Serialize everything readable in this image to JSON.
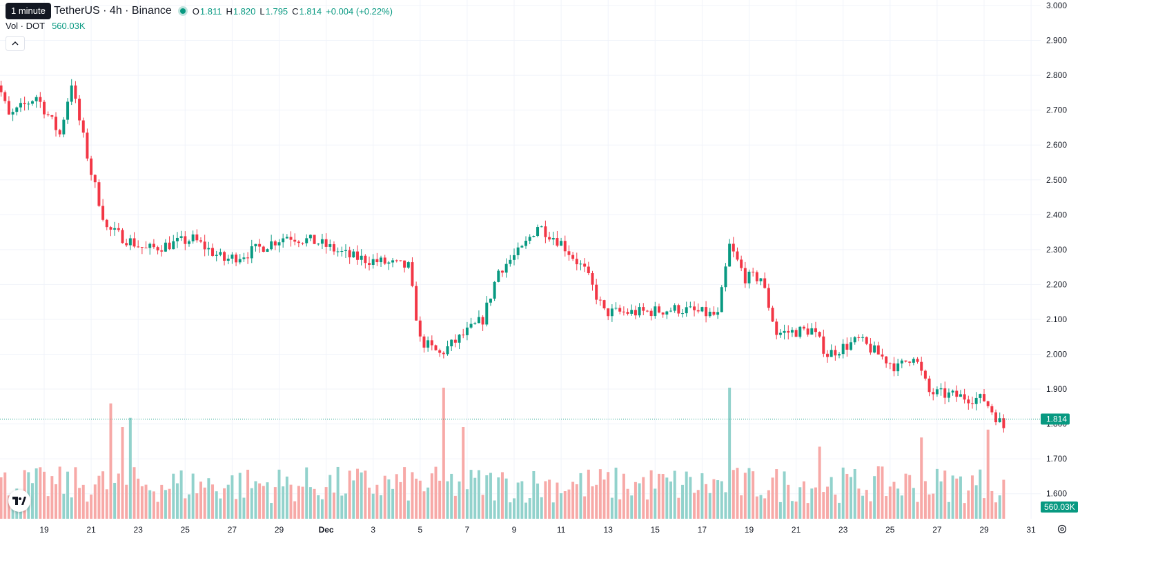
{
  "tooltip": "1 minute",
  "symbol": {
    "title": "TetherUS · 4h · Binance"
  },
  "ohlc": {
    "o_label": "O",
    "o": "1.811",
    "h_label": "H",
    "h": "1.820",
    "l_label": "L",
    "l": "1.795",
    "c_label": "C",
    "c": "1.814",
    "change": "+0.004 (+0.22%)"
  },
  "volume": {
    "label": "Vol · DOT",
    "value": "560.03K"
  },
  "collapse_icon": "chevron-up-icon",
  "colors": {
    "up": "#089981",
    "down": "#f23645",
    "up_volume": "#92d2cc",
    "down_volume": "#f7a9a7",
    "grid": "#f0f3fa"
  },
  "chart_data": {
    "type": "candlestick",
    "timeframe": "4h",
    "price_axis": {
      "ticks": [
        "3.000",
        "2.900",
        "2.800",
        "2.700",
        "2.600",
        "2.500",
        "2.400",
        "2.300",
        "2.200",
        "2.100",
        "2.000",
        "1.900",
        "1.800",
        "1.700",
        "1.600"
      ],
      "range": [
        1.58,
        3.0
      ]
    },
    "time_axis": {
      "ticks": [
        "19",
        "21",
        "23",
        "25",
        "27",
        "29",
        "Dec",
        "3",
        "5",
        "7",
        "9",
        "11",
        "13",
        "15",
        "17",
        "19",
        "21",
        "23",
        "25",
        "27",
        "29",
        "31"
      ]
    },
    "last_price": "1.814",
    "last_volume": "560.03K",
    "waypoints": [
      [
        0,
        2.83
      ],
      [
        3,
        2.75
      ],
      [
        5,
        2.68
      ],
      [
        12,
        2.74
      ],
      [
        18,
        2.63
      ],
      [
        21,
        2.78
      ],
      [
        22,
        2.72
      ],
      [
        26,
        2.52
      ],
      [
        30,
        2.36
      ],
      [
        40,
        2.3
      ],
      [
        52,
        2.33
      ],
      [
        60,
        2.27
      ],
      [
        66,
        2.29
      ],
      [
        76,
        2.34
      ],
      [
        84,
        2.32
      ],
      [
        92,
        2.28
      ],
      [
        107,
        2.25
      ],
      [
        110,
        2.04
      ],
      [
        115,
        2.0
      ],
      [
        126,
        2.1
      ],
      [
        130,
        2.24
      ],
      [
        136,
        2.3
      ],
      [
        140,
        2.37
      ],
      [
        146,
        2.32
      ],
      [
        152,
        2.24
      ],
      [
        157,
        2.12
      ],
      [
        166,
        2.12
      ],
      [
        176,
        2.13
      ],
      [
        186,
        2.11
      ],
      [
        189,
        2.31
      ],
      [
        193,
        2.22
      ],
      [
        197,
        2.22
      ],
      [
        201,
        2.06
      ],
      [
        210,
        2.07
      ],
      [
        214,
        2.0
      ],
      [
        222,
        2.04
      ],
      [
        232,
        1.96
      ],
      [
        236,
        2.0
      ],
      [
        240,
        1.89
      ],
      [
        254,
        1.87
      ],
      [
        259,
        1.79
      ],
      [
        264,
        1.75
      ],
      [
        272,
        1.85
      ],
      [
        278,
        1.86
      ],
      [
        288,
        1.8
      ],
      [
        292,
        1.8
      ],
      [
        297,
        1.84
      ],
      [
        301,
        1.78
      ],
      [
        310,
        1.75
      ],
      [
        322,
        1.73
      ],
      [
        330,
        1.73
      ],
      [
        336,
        1.75
      ],
      [
        340,
        1.9
      ],
      [
        343,
        1.88
      ],
      [
        350,
        1.86
      ],
      [
        354,
        1.85
      ],
      [
        363,
        1.814
      ]
    ],
    "volume_spikes": [
      [
        31,
        0.88
      ],
      [
        34,
        0.7
      ],
      [
        36,
        0.77
      ],
      [
        116,
        1.0
      ],
      [
        121,
        0.7
      ],
      [
        189,
        1.35
      ],
      [
        212,
        0.55
      ],
      [
        238,
        0.62
      ],
      [
        255,
        0.68
      ],
      [
        263,
        0.58
      ],
      [
        324,
        0.55
      ],
      [
        341,
        0.62
      ]
    ]
  }
}
